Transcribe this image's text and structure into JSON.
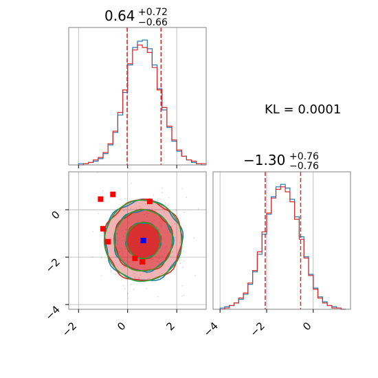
{
  "chart_data": [
    {
      "type": "histogram",
      "panel": "top-left",
      "title_main": "0.64",
      "title_sup": "+0.72",
      "title_sub": "−0.66",
      "xlim": [
        -2.4,
        3.2
      ],
      "grid": true,
      "quantile_lines": [
        -0.02,
        1.36
      ],
      "quantile_color": "#d62728",
      "series": [
        {
          "name": "",
          "color": "#1f77b4",
          "bins": [
            -2,
            -1.8,
            -1.6,
            -1.4,
            -1.2,
            -1,
            -0.8,
            -0.6,
            -0.4,
            -0.2,
            0,
            0.2,
            0.4,
            0.6,
            0.8,
            1,
            1.2,
            1.4,
            1.6,
            1.8,
            2,
            2.2,
            2.4,
            2.6,
            2.8,
            3
          ],
          "values": [
            1,
            1,
            2,
            3,
            5,
            9,
            16,
            26,
            40,
            58,
            80,
            94,
            99,
            100,
            93,
            80,
            61,
            44,
            30,
            19,
            11,
            7,
            4,
            2,
            1,
            0
          ]
        },
        {
          "name": "",
          "color": "#d62728",
          "bins": [
            -2,
            -1.8,
            -1.6,
            -1.4,
            -1.2,
            -1,
            -0.8,
            -0.6,
            -0.4,
            -0.2,
            0,
            0.2,
            0.4,
            0.6,
            0.8,
            1,
            1.2,
            1.4,
            1.6,
            1.8,
            2,
            2.2,
            2.4,
            2.6,
            2.8,
            3
          ],
          "values": [
            0,
            1,
            2,
            4,
            6,
            10,
            17,
            27,
            42,
            60,
            81,
            92,
            96,
            94,
            90,
            78,
            60,
            46,
            31,
            20,
            12,
            7,
            4,
            3,
            1,
            1
          ]
        }
      ]
    },
    {
      "type": "histogram",
      "panel": "bottom-right",
      "title_main": "−1.30",
      "title_sup": "+0.76",
      "title_sub": "−0.76",
      "xlim": [
        -4.3,
        1.6
      ],
      "xticks": [
        -4,
        -2,
        0
      ],
      "xtick_labels": [
        "−4",
        "−2",
        "0"
      ],
      "grid": true,
      "quantile_lines": [
        -2.06,
        -0.54
      ],
      "quantile_color": "#d62728",
      "series": [
        {
          "name": "",
          "color": "#1f77b4",
          "bins": [
            -4,
            -3.8,
            -3.6,
            -3.4,
            -3.2,
            -3,
            -2.8,
            -2.6,
            -2.4,
            -2.2,
            -2,
            -1.8,
            -1.6,
            -1.4,
            -1.2,
            -1,
            -0.8,
            -0.6,
            -0.4,
            -0.2,
            0,
            0.2,
            0.4,
            0.6,
            0.8,
            1,
            1.2
          ],
          "values": [
            1,
            2,
            3,
            5,
            8,
            12,
            20,
            30,
            44,
            60,
            76,
            90,
            98,
            100,
            97,
            88,
            74,
            58,
            42,
            28,
            17,
            10,
            6,
            3,
            2,
            1,
            0
          ]
        },
        {
          "name": "",
          "color": "#d62728",
          "bins": [
            -4,
            -3.8,
            -3.6,
            -3.4,
            -3.2,
            -3,
            -2.8,
            -2.6,
            -2.4,
            -2.2,
            -2,
            -1.8,
            -1.6,
            -1.4,
            -1.2,
            -1,
            -0.8,
            -0.6,
            -0.4,
            -0.2,
            0,
            0.2,
            0.4,
            0.6,
            0.8,
            1,
            1.2
          ],
          "values": [
            0,
            1,
            3,
            5,
            9,
            13,
            21,
            31,
            46,
            62,
            77,
            89,
            96,
            98,
            94,
            86,
            72,
            56,
            41,
            27,
            16,
            9,
            5,
            3,
            1,
            1,
            0
          ]
        }
      ]
    },
    {
      "type": "contour",
      "panel": "bottom-left",
      "xlim": [
        -2.4,
        3.2
      ],
      "ylim": [
        -4.2,
        1.6
      ],
      "xticks": [
        -2,
        0,
        2
      ],
      "xtick_labels": [
        "−2",
        "0",
        "2"
      ],
      "yticks": [
        -4,
        -2,
        0
      ],
      "ytick_labels": [
        "−4",
        "−2",
        "0"
      ],
      "grid": true,
      "center": [
        0.64,
        -1.3
      ],
      "sigma": [
        0.7,
        0.76
      ],
      "fill_color": "#d62728",
      "contour_colors": [
        "#1f77b4",
        "#d62728",
        "#2ca02c"
      ],
      "contour_levels_sigma": [
        1.0,
        1.7,
        2.25
      ],
      "highlight_points": {
        "color": "#ff0000",
        "x": [
          -1.1,
          -0.6,
          -1.0,
          -0.8,
          0.3,
          0.6,
          0.9
        ],
        "y": [
          0.45,
          0.65,
          -0.8,
          -1.35,
          -2.05,
          -2.2,
          0.35
        ]
      },
      "center_point": {
        "color": "#0000ff",
        "x": 0.64,
        "y": -1.3
      }
    }
  ],
  "annotation": {
    "kl_label": "KL = 0.0001"
  }
}
